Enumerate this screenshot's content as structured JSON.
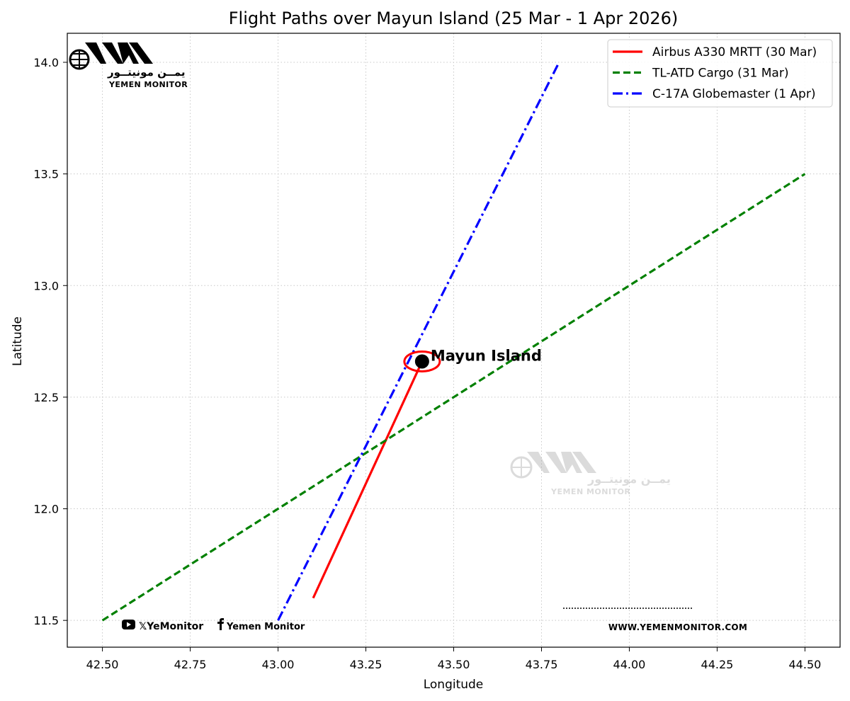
{
  "chart_data": {
    "type": "line",
    "title": "Flight Paths over Mayun Island (25 Mar - 1 Apr 2026)",
    "xlabel": "Longitude",
    "ylabel": "Latitude",
    "xlim": [
      42.4,
      44.6
    ],
    "ylim": [
      11.38,
      14.13
    ],
    "grid": true,
    "legend_position": "top-right",
    "xticks": [
      "42.50",
      "42.75",
      "43.00",
      "43.25",
      "43.50",
      "43.75",
      "44.00",
      "44.25",
      "44.50"
    ],
    "yticks": [
      "11.5",
      "12.0",
      "12.5",
      "13.0",
      "13.5",
      "14.0"
    ],
    "series": [
      {
        "name": "Airbus A330 MRTT (30 Mar)",
        "color": "#ff0000",
        "style": "solid",
        "x": [
          43.1,
          43.41
        ],
        "y": [
          11.6,
          12.66
        ]
      },
      {
        "name": "TL-ATD Cargo (31 Mar)",
        "color": "#008000",
        "style": "dashed",
        "x": [
          42.5,
          44.5
        ],
        "y": [
          11.5,
          13.5
        ]
      },
      {
        "name": "C-17A Globemaster (1 Apr)",
        "color": "#0000ff",
        "style": "dashdot",
        "x": [
          43.0,
          43.8
        ],
        "y": [
          11.5,
          14.0
        ]
      }
    ],
    "point": {
      "label": "Mayun Island",
      "x": 43.41,
      "y": 12.66,
      "color": "#000000",
      "ring_color": "#ff0000"
    }
  },
  "branding": {
    "logo_arabic": "يمــن مونيتــور",
    "logo_english": "YEMEN MONITOR",
    "youtube_icon": "youtube-icon",
    "x_handle": "𝕏YeMonitor",
    "facebook_icon": "facebook-icon",
    "facebook_name": "Yemen Monitor",
    "website": "WWW.YEMENMONITOR.COM"
  }
}
